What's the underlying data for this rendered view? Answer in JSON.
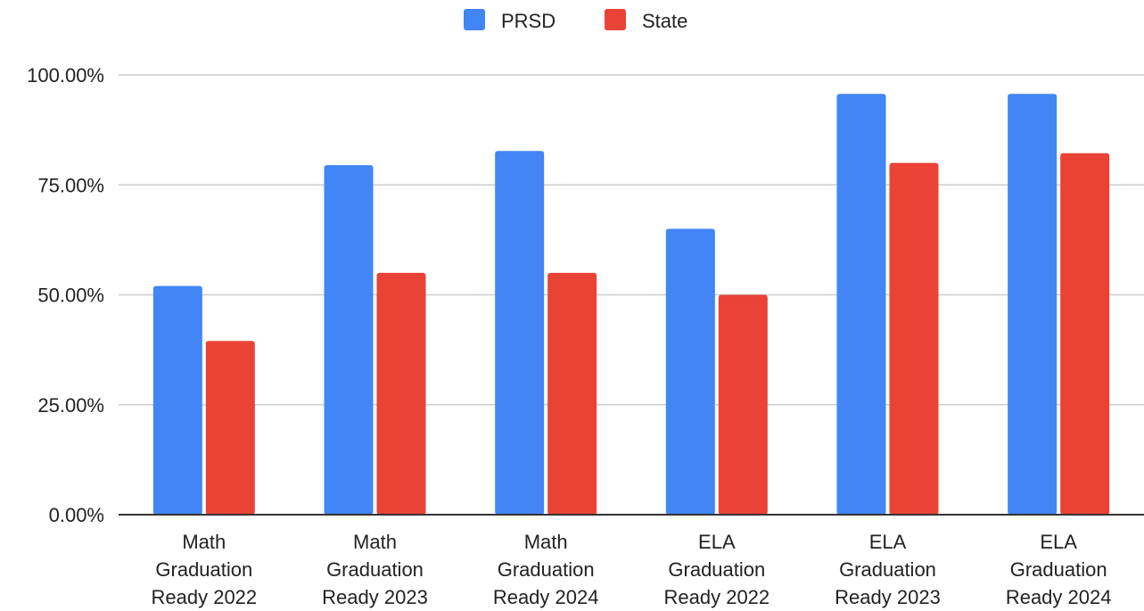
{
  "chart_data": {
    "type": "bar",
    "categories": [
      [
        "Math",
        "Graduation",
        "Ready 2022"
      ],
      [
        "Math",
        "Graduation",
        "Ready 2023"
      ],
      [
        "Math",
        "Graduation",
        "Ready 2024"
      ],
      [
        "ELA",
        "Graduation",
        "Ready 2022"
      ],
      [
        "ELA",
        "Graduation",
        "Ready 2023"
      ],
      [
        "ELA",
        "Graduation",
        "Ready 2024"
      ]
    ],
    "series": [
      {
        "name": "PRSD",
        "color": "#4285F4",
        "values": [
          52.0,
          79.5,
          82.7,
          65.0,
          95.7,
          95.7
        ]
      },
      {
        "name": "State",
        "color": "#EA4335",
        "values": [
          39.5,
          55.0,
          55.0,
          50.0,
          80.0,
          82.2
        ]
      }
    ],
    "yticks": [
      0,
      25,
      50,
      75,
      100
    ],
    "ytick_labels": [
      "0.00%",
      "25.00%",
      "50.00%",
      "75.00%",
      "100.00%"
    ],
    "ylim": [
      0,
      100
    ],
    "title": "",
    "xlabel": "",
    "ylabel": "",
    "grid": true,
    "legend_position": "top-center"
  }
}
